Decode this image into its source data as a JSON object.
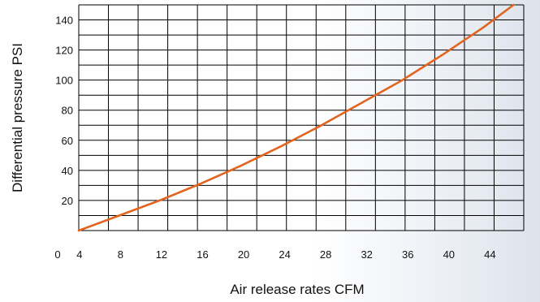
{
  "chart_data": {
    "type": "line",
    "title": "",
    "xlabel": "Air release rates CFM",
    "ylabel": "Differential pressure PSI",
    "xlim": [
      0,
      44
    ],
    "ylim": [
      0,
      150
    ],
    "x_ticks": [
      0,
      4,
      8,
      12,
      16,
      20,
      24,
      28,
      32,
      36,
      40,
      44
    ],
    "y_ticks": [
      20,
      40,
      60,
      80,
      100,
      120,
      140
    ],
    "grid": true,
    "legend": "none",
    "series": [
      {
        "color": "#e2641e",
        "x": [
          0,
          4,
          8,
          12,
          16,
          20,
          24,
          28,
          32,
          36,
          40,
          43
        ],
        "y": [
          0,
          10,
          20,
          31,
          43,
          56,
          70,
          85,
          100,
          117,
          135,
          150
        ]
      }
    ]
  }
}
